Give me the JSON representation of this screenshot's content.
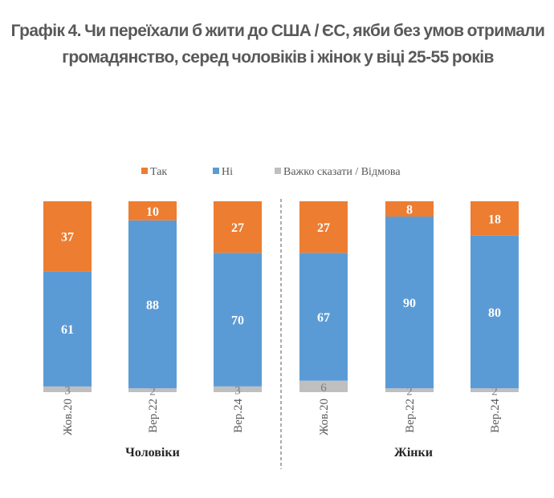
{
  "chart_data": {
    "type": "bar",
    "stacked": true,
    "title": "Графік 4. Чи переїхали б жити до США / ЄС, якби без умов отримали громадянство, серед чоловіків і жінок у віці 25-55 років",
    "legend_position": "top",
    "grid": false,
    "groups": [
      {
        "name": "Чоловіки",
        "categories": [
          "Жов.20",
          "Вер.22",
          "Вер.24"
        ]
      },
      {
        "name": "Жінки",
        "categories": [
          "Жов.20",
          "Вер.22",
          "Вер.24"
        ]
      }
    ],
    "series": [
      {
        "name": "Так",
        "color": "#ED7D31",
        "values": [
          37,
          10,
          27,
          27,
          8,
          18
        ]
      },
      {
        "name": "Ні",
        "color": "#5B9BD5",
        "values": [
          61,
          88,
          70,
          67,
          90,
          80
        ]
      },
      {
        "name": "Важко сказати / Відмова",
        "color": "#BFBFBF",
        "values": [
          3,
          2,
          3,
          6,
          2,
          2
        ]
      }
    ],
    "ylim": [
      0,
      100
    ]
  }
}
